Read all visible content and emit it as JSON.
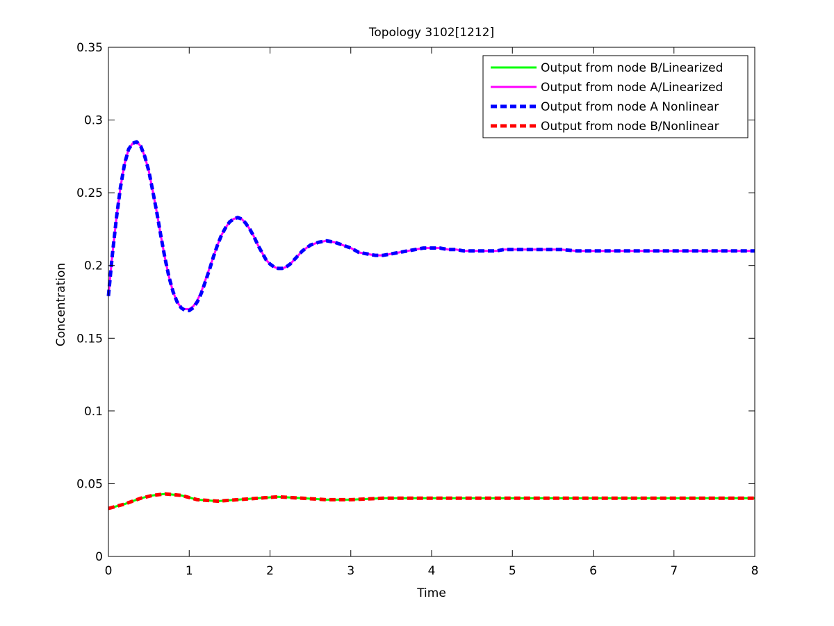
{
  "chart_data": {
    "type": "line",
    "title": "Topology 3102[1212]",
    "xlabel": "Time",
    "ylabel": "Concentration",
    "xlim": [
      0,
      8
    ],
    "ylim": [
      0,
      0.35
    ],
    "xticks": [
      "0",
      "1",
      "2",
      "3",
      "4",
      "5",
      "6",
      "7",
      "8"
    ],
    "yticks": [
      "0",
      "0.05",
      "0.1",
      "0.15",
      "0.2",
      "0.25",
      "0.3",
      "0.35"
    ],
    "grid": false,
    "legend_position": "top-right",
    "series": [
      {
        "name": "Output from node B/Linearized",
        "color": "#00ff00",
        "style": "solid",
        "x": [
          0,
          0.2,
          0.4,
          0.55,
          0.7,
          0.9,
          1.1,
          1.35,
          1.6,
          1.85,
          2.1,
          2.4,
          2.7,
          3.0,
          3.4,
          4.0,
          4.5,
          5.0,
          5.5,
          6.0,
          6.5,
          7.0,
          7.5,
          8.0
        ],
        "values": [
          0.033,
          0.036,
          0.04,
          0.042,
          0.043,
          0.042,
          0.039,
          0.038,
          0.039,
          0.04,
          0.041,
          0.04,
          0.039,
          0.039,
          0.04,
          0.04,
          0.04,
          0.04,
          0.04,
          0.04,
          0.04,
          0.04,
          0.04,
          0.04
        ]
      },
      {
        "name": "Output from node A/Linearized",
        "color": "#ff00ff",
        "style": "solid",
        "x": [
          0,
          0.05,
          0.1,
          0.15,
          0.2,
          0.25,
          0.3,
          0.35,
          0.4,
          0.45,
          0.5,
          0.55,
          0.6,
          0.65,
          0.7,
          0.75,
          0.8,
          0.85,
          0.9,
          0.95,
          1.0,
          1.05,
          1.1,
          1.15,
          1.2,
          1.25,
          1.3,
          1.35,
          1.4,
          1.45,
          1.5,
          1.55,
          1.6,
          1.65,
          1.7,
          1.75,
          1.8,
          1.85,
          1.9,
          1.95,
          2.0,
          2.05,
          2.1,
          2.15,
          2.2,
          2.25,
          2.3,
          2.35,
          2.4,
          2.45,
          2.5,
          2.6,
          2.7,
          2.8,
          2.9,
          3.0,
          3.1,
          3.2,
          3.3,
          3.4,
          3.5,
          3.6,
          3.7,
          3.8,
          3.9,
          4.0,
          4.1,
          4.2,
          4.3,
          4.4,
          4.5,
          4.6,
          4.7,
          4.8,
          4.9,
          5.0,
          5.2,
          5.4,
          5.6,
          5.8,
          6.0,
          6.2,
          6.4,
          6.6,
          6.8,
          7.0,
          7.2,
          7.4,
          7.6,
          7.8,
          8.0
        ],
        "values": [
          0.179,
          0.208,
          0.233,
          0.254,
          0.27,
          0.28,
          0.284,
          0.285,
          0.282,
          0.275,
          0.265,
          0.251,
          0.236,
          0.22,
          0.205,
          0.192,
          0.182,
          0.175,
          0.171,
          0.17,
          0.17,
          0.172,
          0.176,
          0.182,
          0.19,
          0.198,
          0.206,
          0.214,
          0.221,
          0.226,
          0.23,
          0.232,
          0.233,
          0.232,
          0.229,
          0.225,
          0.22,
          0.214,
          0.209,
          0.204,
          0.201,
          0.199,
          0.198,
          0.198,
          0.199,
          0.201,
          0.204,
          0.207,
          0.21,
          0.212,
          0.214,
          0.216,
          0.217,
          0.216,
          0.214,
          0.212,
          0.209,
          0.208,
          0.207,
          0.207,
          0.208,
          0.209,
          0.21,
          0.211,
          0.212,
          0.212,
          0.212,
          0.211,
          0.211,
          0.21,
          0.21,
          0.21,
          0.21,
          0.21,
          0.211,
          0.211,
          0.211,
          0.211,
          0.211,
          0.21,
          0.21,
          0.21,
          0.21,
          0.21,
          0.21,
          0.21,
          0.21,
          0.21,
          0.21,
          0.21,
          0.21
        ]
      },
      {
        "name": "Output from node A Nonlinear",
        "color": "#0000ff",
        "style": "dashed",
        "x": [
          0,
          0.05,
          0.1,
          0.15,
          0.2,
          0.25,
          0.3,
          0.35,
          0.4,
          0.45,
          0.5,
          0.55,
          0.6,
          0.65,
          0.7,
          0.75,
          0.8,
          0.85,
          0.9,
          0.95,
          1.0,
          1.05,
          1.1,
          1.15,
          1.2,
          1.25,
          1.3,
          1.35,
          1.4,
          1.45,
          1.5,
          1.55,
          1.6,
          1.65,
          1.7,
          1.75,
          1.8,
          1.85,
          1.9,
          1.95,
          2.0,
          2.05,
          2.1,
          2.15,
          2.2,
          2.25,
          2.3,
          2.35,
          2.4,
          2.45,
          2.5,
          2.6,
          2.7,
          2.8,
          2.9,
          3.0,
          3.1,
          3.2,
          3.3,
          3.4,
          3.5,
          3.6,
          3.7,
          3.8,
          3.9,
          4.0,
          4.1,
          4.2,
          4.3,
          4.4,
          4.5,
          4.6,
          4.7,
          4.8,
          4.9,
          5.0,
          5.2,
          5.4,
          5.6,
          5.8,
          6.0,
          6.2,
          6.4,
          6.6,
          6.8,
          7.0,
          7.2,
          7.4,
          7.6,
          7.8,
          8.0
        ],
        "values": [
          0.179,
          0.208,
          0.233,
          0.254,
          0.27,
          0.28,
          0.284,
          0.285,
          0.282,
          0.275,
          0.265,
          0.251,
          0.236,
          0.22,
          0.205,
          0.192,
          0.182,
          0.175,
          0.171,
          0.169,
          0.169,
          0.171,
          0.175,
          0.181,
          0.189,
          0.197,
          0.206,
          0.214,
          0.221,
          0.226,
          0.23,
          0.232,
          0.233,
          0.232,
          0.229,
          0.225,
          0.22,
          0.214,
          0.209,
          0.204,
          0.201,
          0.199,
          0.198,
          0.198,
          0.199,
          0.201,
          0.204,
          0.207,
          0.21,
          0.212,
          0.214,
          0.216,
          0.217,
          0.216,
          0.214,
          0.212,
          0.209,
          0.208,
          0.207,
          0.207,
          0.208,
          0.209,
          0.21,
          0.211,
          0.212,
          0.212,
          0.212,
          0.211,
          0.211,
          0.21,
          0.21,
          0.21,
          0.21,
          0.21,
          0.211,
          0.211,
          0.211,
          0.211,
          0.211,
          0.21,
          0.21,
          0.21,
          0.21,
          0.21,
          0.21,
          0.21,
          0.21,
          0.21,
          0.21,
          0.21,
          0.21
        ]
      },
      {
        "name": "Output from node B/Nonlinear",
        "color": "#ff0000",
        "style": "dashed",
        "x": [
          0,
          0.2,
          0.4,
          0.55,
          0.7,
          0.9,
          1.1,
          1.35,
          1.6,
          1.85,
          2.1,
          2.4,
          2.7,
          3.0,
          3.4,
          4.0,
          4.5,
          5.0,
          5.5,
          6.0,
          6.5,
          7.0,
          7.5,
          8.0
        ],
        "values": [
          0.033,
          0.036,
          0.04,
          0.042,
          0.043,
          0.042,
          0.039,
          0.038,
          0.039,
          0.04,
          0.041,
          0.04,
          0.039,
          0.039,
          0.04,
          0.04,
          0.04,
          0.04,
          0.04,
          0.04,
          0.04,
          0.04,
          0.04,
          0.04
        ]
      }
    ]
  }
}
